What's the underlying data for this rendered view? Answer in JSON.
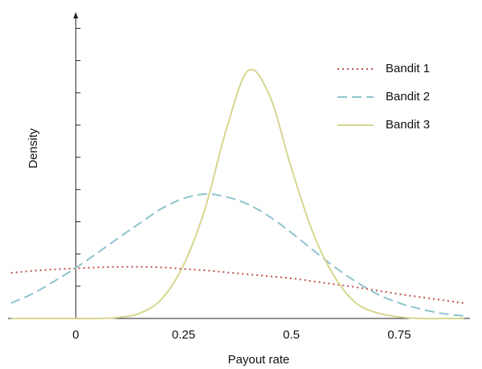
{
  "chart_data": {
    "type": "line",
    "x_label": "Payout rate",
    "y_label": "Density",
    "x": [
      -0.15,
      -0.1,
      -0.05,
      0,
      0.05,
      0.1,
      0.15,
      0.2,
      0.25,
      0.3,
      0.35,
      0.4,
      0.45,
      0.5,
      0.55,
      0.6,
      0.65,
      0.7,
      0.75,
      0.8,
      0.85,
      0.9
    ],
    "series": [
      {
        "name": "Bandit 1",
        "color": "#c0504d",
        "dash": "dotted",
        "values": [
          0.92,
          0.96,
          0.99,
          1.01,
          1.03,
          1.04,
          1.04,
          1.03,
          1.0,
          0.97,
          0.93,
          0.89,
          0.85,
          0.81,
          0.75,
          0.69,
          0.63,
          0.56,
          0.49,
          0.43,
          0.37,
          0.31
        ]
      },
      {
        "name": "Bandit 2",
        "color": "#8fc4cc",
        "dash": "dashed",
        "values": [
          0.31,
          0.5,
          0.75,
          1.02,
          1.32,
          1.63,
          1.93,
          2.22,
          2.42,
          2.51,
          2.45,
          2.3,
          2.05,
          1.73,
          1.38,
          1.04,
          0.74,
          0.49,
          0.31,
          0.19,
          0.1,
          0.05
        ]
      },
      {
        "name": "Bandit 3",
        "color": "#d6d68f",
        "dash": "solid",
        "values": [
          0,
          0,
          0,
          0,
          0,
          0.02,
          0.11,
          0.4,
          1.08,
          2.22,
          3.84,
          5.0,
          4.48,
          3.03,
          1.73,
          0.84,
          0.31,
          0.11,
          0.03,
          0,
          0,
          0
        ]
      }
    ],
    "xlim": [
      -0.157,
      0.914
    ],
    "xticks": [
      0,
      0.25,
      0.5,
      0.75
    ],
    "ylim": [
      0,
      6.18
    ],
    "yticks": [
      0.65,
      1.3,
      1.95,
      2.6,
      3.25,
      3.9,
      4.55,
      5.2,
      5.85
    ],
    "legend": "upper-right",
    "grid": false
  }
}
